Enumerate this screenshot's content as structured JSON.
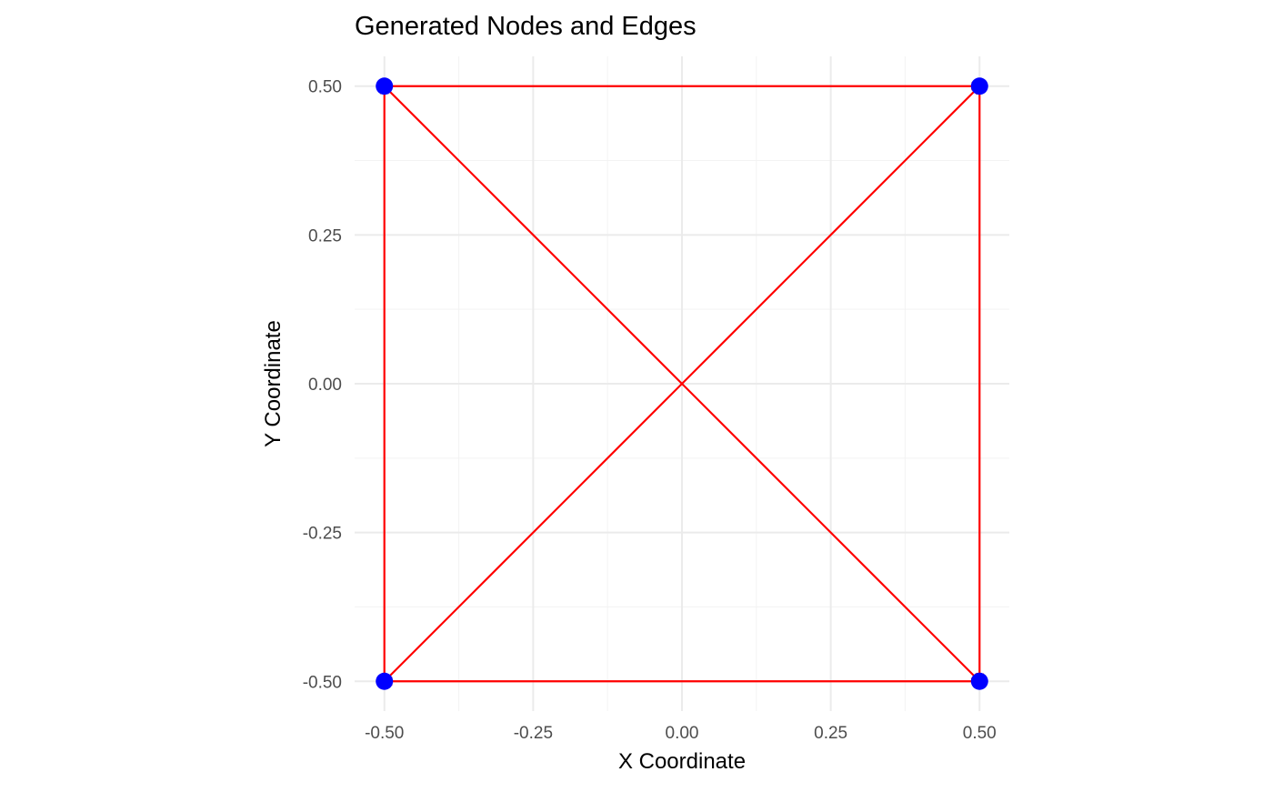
{
  "chart_data": {
    "type": "scatter",
    "title": "Generated Nodes and Edges",
    "xlabel": "X Coordinate",
    "ylabel": "Y Coordinate",
    "xlim": [
      -0.55,
      0.55
    ],
    "ylim": [
      -0.55,
      0.55
    ],
    "x_ticks": [
      -0.5,
      -0.25,
      0.0,
      0.25,
      0.5
    ],
    "x_tick_labels": [
      "-0.50",
      "-0.25",
      "0.00",
      "0.25",
      "0.50"
    ],
    "y_ticks": [
      -0.5,
      -0.25,
      0.0,
      0.25,
      0.5
    ],
    "y_tick_labels": [
      "-0.50",
      "-0.25",
      "0.00",
      "0.25",
      "0.50"
    ],
    "x_minor": [
      -0.375,
      -0.125,
      0.125,
      0.375
    ],
    "y_minor": [
      -0.375,
      -0.125,
      0.125,
      0.375
    ],
    "grid": true,
    "legend": "none",
    "nodes": [
      {
        "x": -0.5,
        "y": 0.5
      },
      {
        "x": 0.5,
        "y": 0.5
      },
      {
        "x": -0.5,
        "y": -0.5
      },
      {
        "x": 0.5,
        "y": -0.5
      }
    ],
    "edges": [
      {
        "from": [
          -0.5,
          0.5
        ],
        "to": [
          0.5,
          0.5
        ]
      },
      {
        "from": [
          0.5,
          0.5
        ],
        "to": [
          0.5,
          -0.5
        ]
      },
      {
        "from": [
          0.5,
          -0.5
        ],
        "to": [
          -0.5,
          -0.5
        ]
      },
      {
        "from": [
          -0.5,
          -0.5
        ],
        "to": [
          -0.5,
          0.5
        ]
      },
      {
        "from": [
          -0.5,
          -0.5
        ],
        "to": [
          0.5,
          0.5
        ]
      },
      {
        "from": [
          -0.5,
          0.5
        ],
        "to": [
          0.5,
          -0.5
        ]
      }
    ],
    "colors": {
      "node": "#0000ff",
      "edge": "#ff0000",
      "grid_major": "#ebebeb",
      "grid_minor": "#f3f3f3",
      "tick_text": "#4d4d4d",
      "title_text": "#000000"
    }
  }
}
